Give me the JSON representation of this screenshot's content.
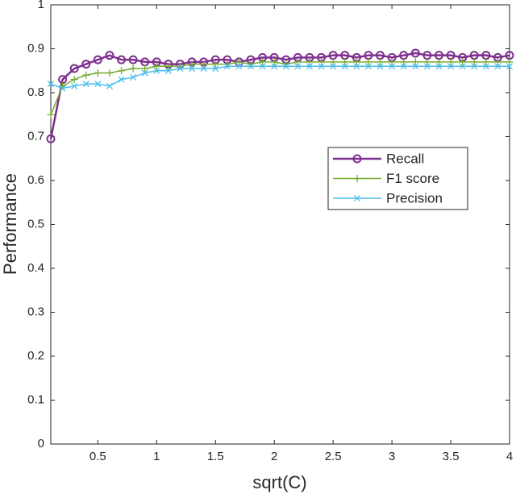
{
  "chart_data": {
    "type": "line",
    "x_label": "sqrt(C)",
    "y_label": "Performance",
    "x": [
      0.1,
      0.2,
      0.3,
      0.4,
      0.5,
      0.6,
      0.7,
      0.8,
      0.9,
      1.0,
      1.1,
      1.2,
      1.3,
      1.4,
      1.5,
      1.6,
      1.7,
      1.8,
      1.9,
      2.0,
      2.1,
      2.2,
      2.3,
      2.4,
      2.5,
      2.6,
      2.7,
      2.8,
      2.9,
      3.0,
      3.1,
      3.2,
      3.3,
      3.4,
      3.5,
      3.6,
      3.7,
      3.8,
      3.9,
      4.0
    ],
    "series": [
      {
        "name": "Recall",
        "color": "#7e2f8e",
        "marker": "o",
        "values": [
          0.695,
          0.83,
          0.855,
          0.865,
          0.875,
          0.885,
          0.875,
          0.875,
          0.87,
          0.87,
          0.865,
          0.865,
          0.87,
          0.87,
          0.875,
          0.875,
          0.87,
          0.875,
          0.88,
          0.88,
          0.875,
          0.88,
          0.88,
          0.88,
          0.885,
          0.885,
          0.88,
          0.885,
          0.885,
          0.88,
          0.885,
          0.89,
          0.885,
          0.885,
          0.885,
          0.88,
          0.885,
          0.885,
          0.88,
          0.885
        ]
      },
      {
        "name": "F1 score",
        "color": "#77ac30",
        "marker": "+",
        "values": [
          0.75,
          0.815,
          0.83,
          0.84,
          0.845,
          0.845,
          0.85,
          0.855,
          0.855,
          0.86,
          0.86,
          0.86,
          0.865,
          0.865,
          0.865,
          0.865,
          0.87,
          0.865,
          0.87,
          0.87,
          0.865,
          0.87,
          0.87,
          0.87,
          0.87,
          0.87,
          0.87,
          0.87,
          0.87,
          0.87,
          0.87,
          0.87,
          0.87,
          0.87,
          0.87,
          0.87,
          0.87,
          0.87,
          0.87,
          0.87
        ]
      },
      {
        "name": "Precision",
        "color": "#4dbeee",
        "marker": "x",
        "values": [
          0.82,
          0.81,
          0.815,
          0.82,
          0.82,
          0.815,
          0.83,
          0.835,
          0.845,
          0.85,
          0.85,
          0.855,
          0.855,
          0.855,
          0.855,
          0.86,
          0.86,
          0.86,
          0.86,
          0.86,
          0.86,
          0.86,
          0.86,
          0.86,
          0.86,
          0.86,
          0.86,
          0.86,
          0.86,
          0.86,
          0.86,
          0.86,
          0.86,
          0.86,
          0.86,
          0.86,
          0.86,
          0.86,
          0.86,
          0.86
        ]
      }
    ],
    "xlim": [
      0.1,
      4
    ],
    "ylim": [
      0,
      1
    ],
    "xticks": [
      0.5,
      1,
      1.5,
      2,
      2.5,
      3,
      3.5,
      4
    ],
    "yticks": [
      0,
      0.1,
      0.2,
      0.3,
      0.4,
      0.5,
      0.6,
      0.7,
      0.8,
      0.9,
      1
    ],
    "grid": false,
    "legend": "right"
  }
}
